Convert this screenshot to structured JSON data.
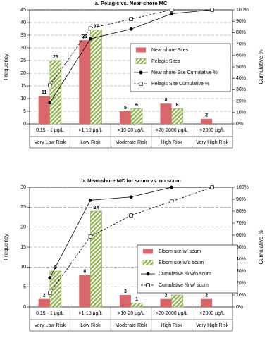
{
  "chart_data": [
    {
      "type": "bar",
      "title": "a. Pelagic vs. Near-shore MC",
      "ylabel": "Frequency",
      "y2label": "Cumulative %",
      "categories": [
        "0.15 - 1 μg/L",
        ">1-10 μg/L",
        ">10-20 μg/L",
        ">20-2000 μg/L",
        ">2000 μg/L"
      ],
      "risk_labels": [
        "Very Low Risk",
        "Low Risk",
        "Moderate Risk",
        "High Risk",
        "Very High Risk"
      ],
      "ylim": [
        0,
        45
      ],
      "yticks": [
        0,
        5,
        10,
        15,
        20,
        25,
        30,
        35,
        40,
        45
      ],
      "y2lim": [
        0,
        100
      ],
      "y2ticks": [
        {
          "value": 0,
          "label": "0%"
        },
        {
          "value": 10,
          "label": "10%"
        },
        {
          "value": 20,
          "label": "20%"
        },
        {
          "value": 30,
          "label": "30%"
        },
        {
          "value": 40,
          "label": "40%"
        },
        {
          "value": 50,
          "label": "50%"
        },
        {
          "value": 60,
          "label": "60%"
        },
        {
          "value": 70,
          "label": "70%"
        },
        {
          "value": 80,
          "label": "80%"
        },
        {
          "value": 90,
          "label": "90%"
        },
        {
          "value": 100,
          "label": "100%"
        }
      ],
      "grid": true,
      "series": [
        {
          "name": "Near shore Sites",
          "type": "bar",
          "color": "#d9666b",
          "values": [
            11,
            33,
            5,
            8,
            2
          ]
        },
        {
          "name": "Pelagic Sites",
          "type": "bar",
          "color": "#8fb24f",
          "hatch": true,
          "values": [
            25,
            37,
            6,
            6,
            null
          ]
        },
        {
          "name": "Near shore Site Cumulative %",
          "type": "line",
          "axis": "y2",
          "color": "#000000",
          "marker": "circle",
          "dashed": false,
          "values": [
            18.6,
            74.6,
            83.1,
            96.6,
            100
          ]
        },
        {
          "name": "Pelagic Site Cumulative %",
          "type": "line",
          "axis": "y2",
          "color": "#000000",
          "marker": "square",
          "dashed": true,
          "values": [
            33.8,
            83.8,
            91.9,
            100,
            100
          ]
        }
      ]
    },
    {
      "type": "bar",
      "title": "b. Near-shore MC for scum vs. no scum",
      "ylabel": "Frequency",
      "y2label": "Cumulative %",
      "categories": [
        "0.15 - 1 μg/L",
        ">1-10 μg/L",
        ">10-20 μg/L",
        ">20-2000 μg/L",
        ">2000 μg/L"
      ],
      "risk_labels": [
        "Very Low Risk",
        "Low Risk",
        "Moderate Risk",
        "High Risk",
        "Very High Risk"
      ],
      "ylim": [
        0,
        30
      ],
      "yticks": [
        0,
        5,
        10,
        15,
        20,
        25,
        30
      ],
      "y2lim": [
        0,
        100
      ],
      "y2ticks": [
        {
          "value": 0,
          "label": "0%"
        },
        {
          "value": 10,
          "label": "10%"
        },
        {
          "value": 20,
          "label": "20%"
        },
        {
          "value": 30,
          "label": "30%"
        },
        {
          "value": 40,
          "label": "40%"
        },
        {
          "value": 50,
          "label": "50%"
        },
        {
          "value": 60,
          "label": "60%"
        },
        {
          "value": 70,
          "label": "70%"
        },
        {
          "value": 80,
          "label": "80%"
        },
        {
          "value": 90,
          "label": "90%"
        },
        {
          "value": 100,
          "label": "100%"
        }
      ],
      "grid": true,
      "series": [
        {
          "name": "Bloom site w/ scum",
          "type": "bar",
          "color": "#d9666b",
          "values": [
            2,
            8,
            3,
            2,
            2
          ]
        },
        {
          "name": "Bloom site w/o scum",
          "type": "bar",
          "color": "#8fb24f",
          "hatch": true,
          "values": [
            9,
            24,
            1,
            3,
            null
          ]
        },
        {
          "name": "Cumulative % w/o scum",
          "type": "line",
          "axis": "y2",
          "color": "#000000",
          "marker": "circle",
          "dashed": false,
          "values": [
            24.3,
            89.2,
            91.9,
            100,
            100
          ]
        },
        {
          "name": "Cumulative % w/ scum",
          "type": "line",
          "axis": "y2",
          "color": "#000000",
          "marker": "square",
          "dashed": true,
          "values": [
            11.8,
            58.8,
            76.5,
            88.2,
            100
          ]
        }
      ]
    }
  ]
}
